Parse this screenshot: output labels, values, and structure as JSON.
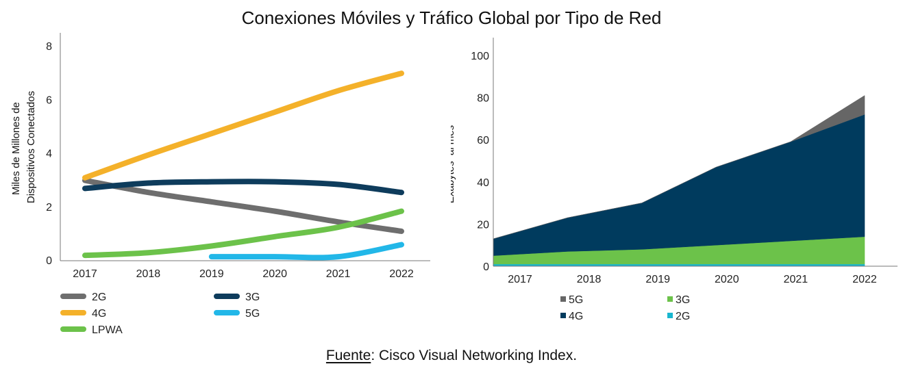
{
  "title": "Conexiones Móviles y Tráfico Global por Tipo de Red",
  "source": {
    "label": "Fuente",
    "text": ": Cisco Visual Networking Index."
  },
  "colors": {
    "2G": "#6e6e6e",
    "3G": "#0e3c5c",
    "4G": "#f4b12a",
    "5G": "#22b7e8",
    "LPWA": "#6cc24a",
    "area_5G": "#666666",
    "area_4G": "#003b5e",
    "area_3G": "#6cc24a",
    "area_2G": "#19b6cf"
  },
  "chart_data": [
    {
      "type": "line",
      "title": "",
      "ylabel": "Miles de Millones de Dispositivos Conectados",
      "ylabel_lines": [
        "Miles de Millones de",
        "Dispositivos Conectados"
      ],
      "x": [
        "2017",
        "2018",
        "2019",
        "2020",
        "2021",
        "2022"
      ],
      "yticks": [
        "0",
        "2",
        "4",
        "6",
        "8"
      ],
      "ylim": [
        0,
        8
      ],
      "series": [
        {
          "name": "2G",
          "x": [
            "2017",
            "2018",
            "2019",
            "2020",
            "2021",
            "2022"
          ],
          "values": [
            3.0,
            2.55,
            2.2,
            1.85,
            1.45,
            1.1
          ]
        },
        {
          "name": "4G",
          "x": [
            "2017",
            "2018",
            "2019",
            "2020",
            "2021",
            "2022"
          ],
          "values": [
            3.1,
            3.95,
            4.75,
            5.55,
            6.35,
            7.0
          ]
        },
        {
          "name": "3G",
          "x": [
            "2017",
            "2018",
            "2019",
            "2020",
            "2021",
            "2022"
          ],
          "values": [
            2.7,
            2.9,
            2.95,
            2.95,
            2.85,
            2.55
          ]
        },
        {
          "name": "5G",
          "x": [
            "2019",
            "2020",
            "2021",
            "2022"
          ],
          "values": [
            0.15,
            0.15,
            0.15,
            0.6
          ]
        },
        {
          "name": "LPWA",
          "x": [
            "2017",
            "2018",
            "2019",
            "2020",
            "2021",
            "2022"
          ],
          "values": [
            0.2,
            0.3,
            0.55,
            0.9,
            1.25,
            1.85
          ]
        }
      ],
      "legend": [
        "2G",
        "3G",
        "4G",
        "5G",
        "LPWA"
      ],
      "legend_position": "bottom"
    },
    {
      "type": "area",
      "title": "",
      "ylabel": "Exabytes  al mes",
      "x": [
        "2017",
        "2018",
        "2019",
        "2020",
        "2021",
        "2022"
      ],
      "yticks": [
        "0",
        "20",
        "40",
        "60",
        "80",
        "100"
      ],
      "ylim": [
        0,
        100
      ],
      "stacked": true,
      "series": [
        {
          "name": "2G",
          "values": [
            1,
            1,
            1,
            1,
            1,
            1
          ]
        },
        {
          "name": "3G",
          "values": [
            4,
            6,
            7,
            9,
            11,
            13
          ]
        },
        {
          "name": "4G",
          "values": [
            8,
            16,
            22,
            37,
            47,
            58
          ]
        },
        {
          "name": "5G",
          "values": [
            0,
            0,
            0,
            0,
            0,
            9
          ]
        }
      ],
      "legend": [
        "5G",
        "3G",
        "4G",
        "2G"
      ],
      "legend_position": "bottom"
    }
  ]
}
